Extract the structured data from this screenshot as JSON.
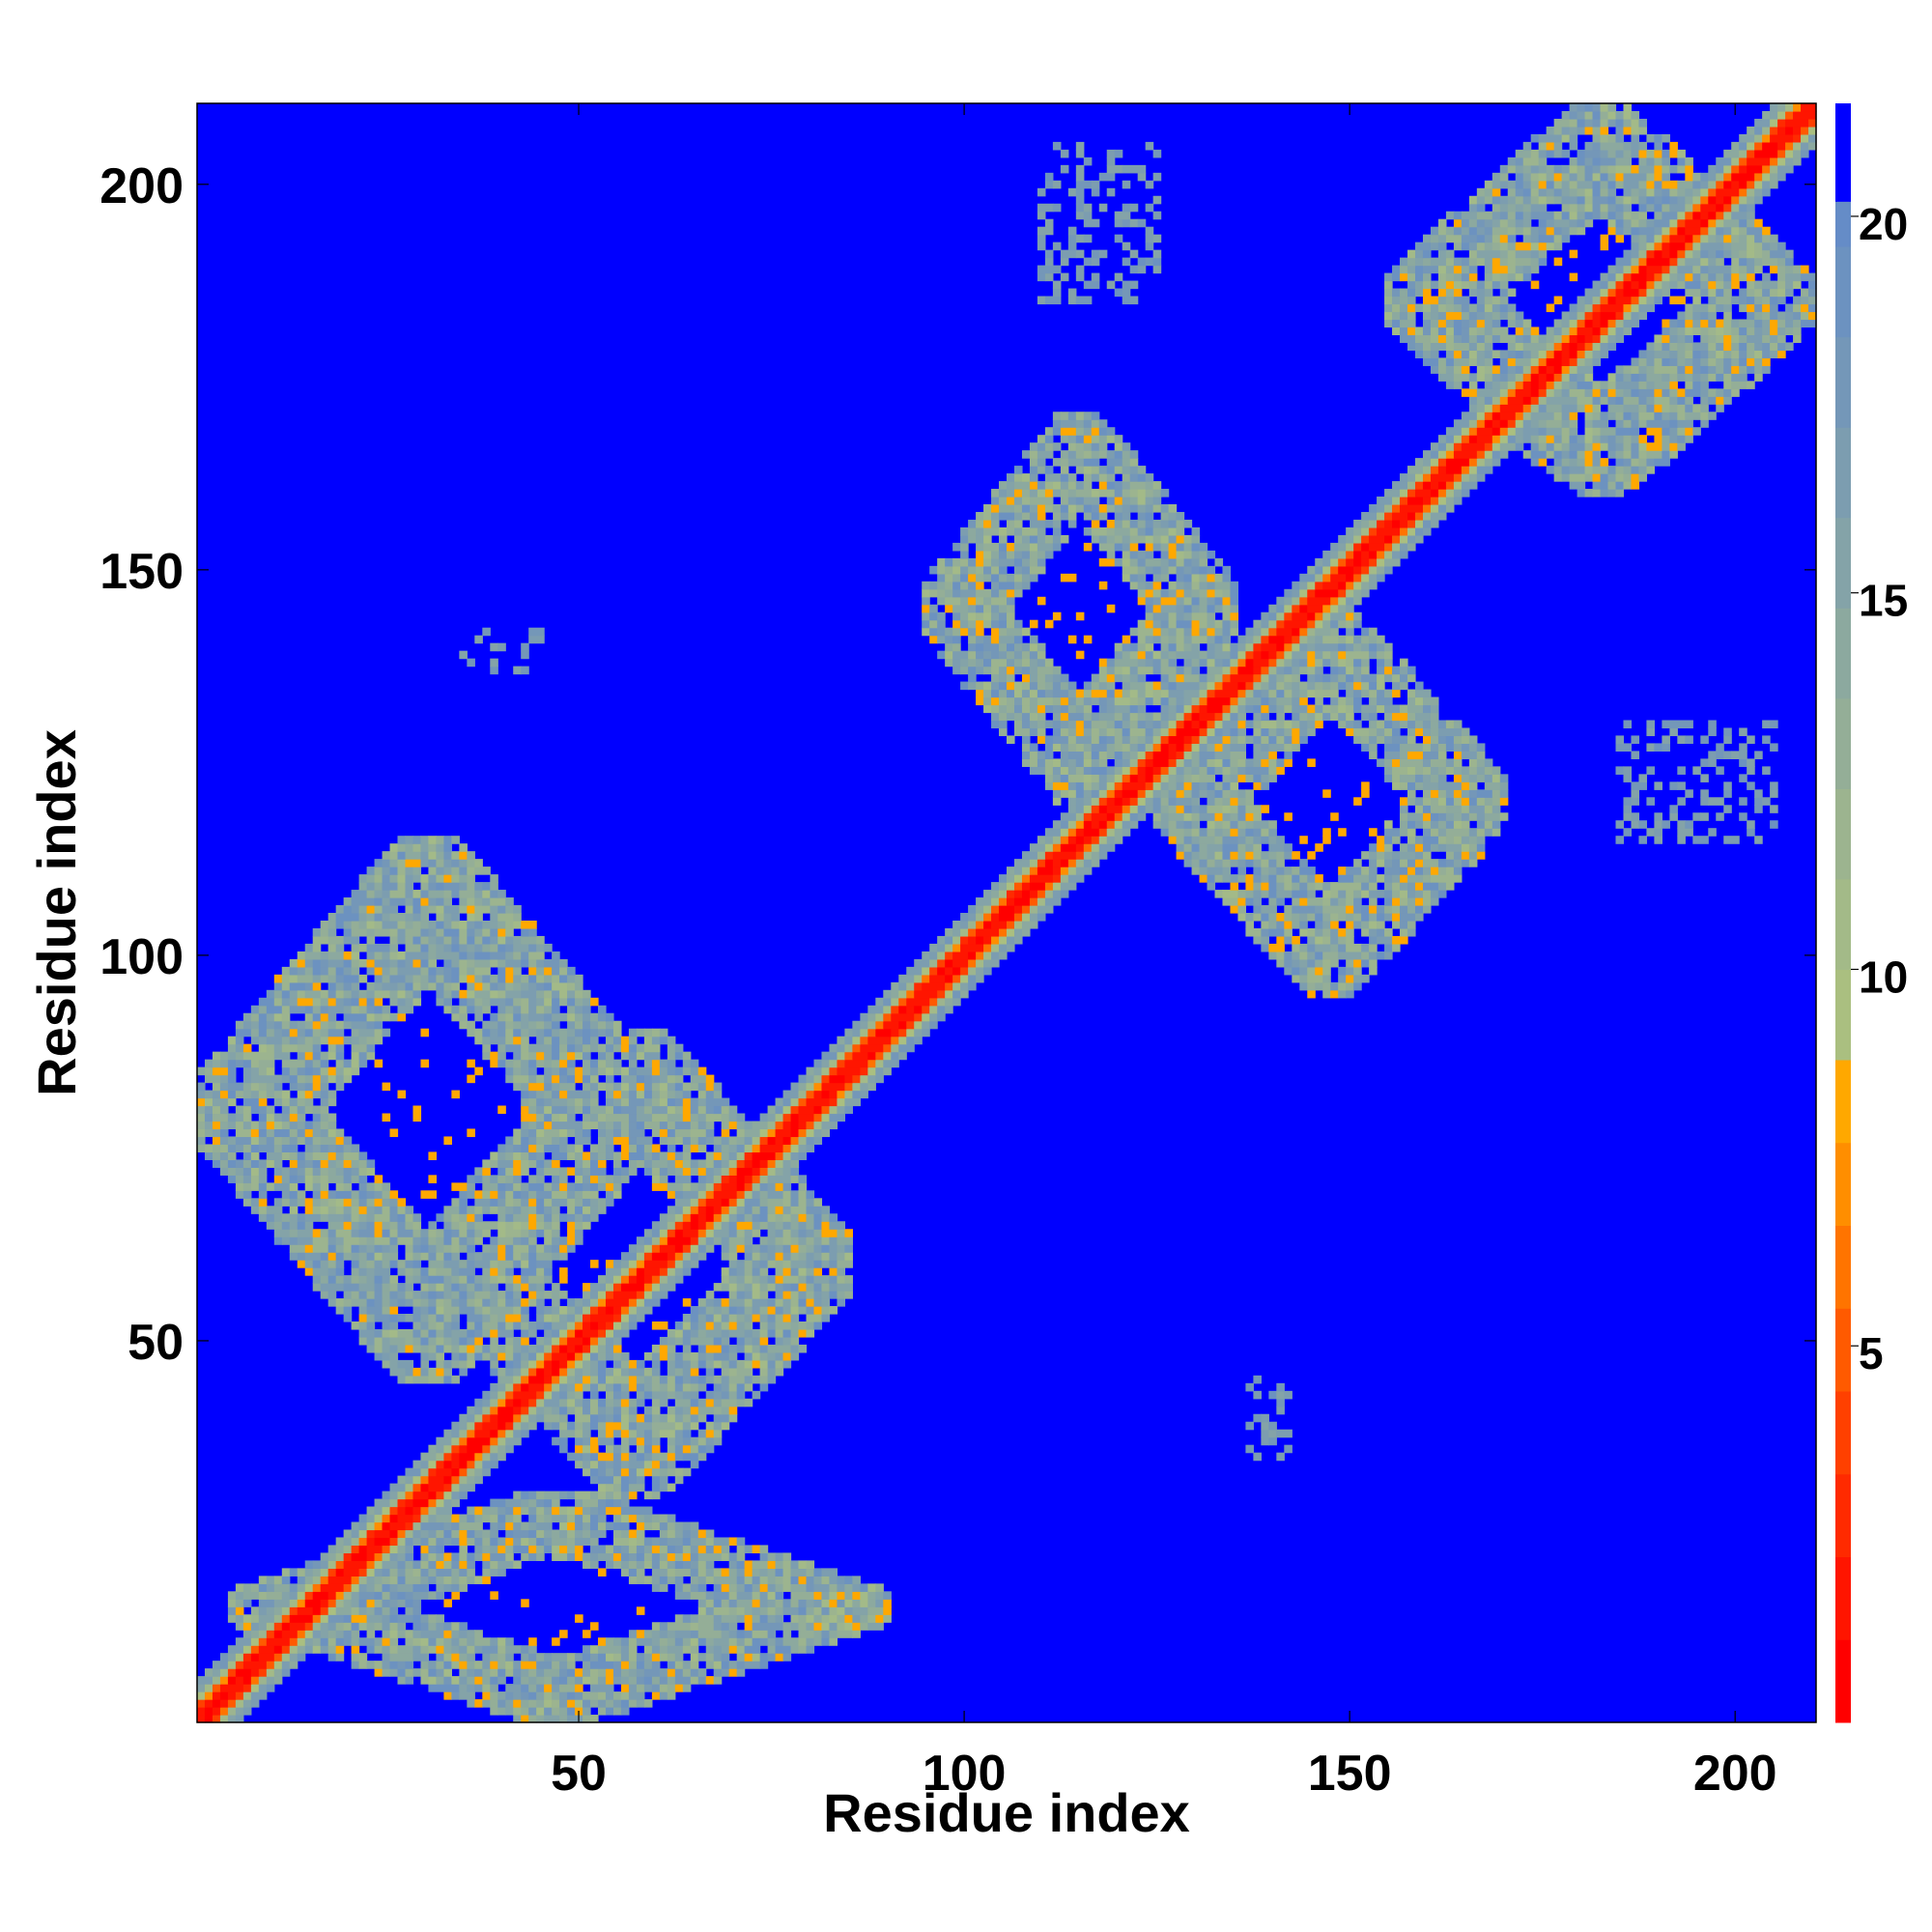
{
  "chart_data": {
    "type": "heatmap",
    "title": "",
    "xlabel": "Residue index",
    "ylabel": "Residue index",
    "xlim": [
      1,
      210
    ],
    "ylim": [
      1,
      210
    ],
    "x_ticks": [
      50,
      100,
      150,
      200
    ],
    "y_ticks": [
      50,
      100,
      150,
      200
    ],
    "colorbar": {
      "range": [
        0,
        21.5
      ],
      "ticks": [
        5,
        10,
        15,
        20
      ],
      "levels": [
        {
          "from": 0,
          "to": 1.1,
          "color": "#ff0000"
        },
        {
          "from": 1.1,
          "to": 2.2,
          "color": "#ff1500"
        },
        {
          "from": 2.2,
          "to": 3.3,
          "color": "#ff2a00"
        },
        {
          "from": 3.3,
          "to": 4.4,
          "color": "#ff4000"
        },
        {
          "from": 4.4,
          "to": 5.5,
          "color": "#ff5a00"
        },
        {
          "from": 5.5,
          "to": 6.6,
          "color": "#ff7400"
        },
        {
          "from": 6.6,
          "to": 7.7,
          "color": "#ff8e00"
        },
        {
          "from": 7.7,
          "to": 8.8,
          "color": "#ffa800"
        },
        {
          "from": 8.8,
          "to": 10,
          "color": "#aabf80"
        },
        {
          "from": 10,
          "to": 11.2,
          "color": "#a3ba88"
        },
        {
          "from": 11.2,
          "to": 12.4,
          "color": "#9cb48f"
        },
        {
          "from": 12.4,
          "to": 13.6,
          "color": "#94ae97"
        },
        {
          "from": 13.6,
          "to": 14.8,
          "color": "#8ca99f"
        },
        {
          "from": 14.8,
          "to": 16,
          "color": "#84a3a8"
        },
        {
          "from": 16,
          "to": 17.2,
          "color": "#7c9db0"
        },
        {
          "from": 17.2,
          "to": 18.4,
          "color": "#7497b8"
        },
        {
          "from": 18.4,
          "to": 19.6,
          "color": "#6c92c0"
        },
        {
          "from": 19.6,
          "to": 20.2,
          "color": "#658cc7"
        },
        {
          "from": 20.2,
          "to": 21.5,
          "color": "#0000ff"
        }
      ]
    },
    "background_color": "#0000ff",
    "description_of_features": {
      "diagonal_band": {
        "core_color": "#ff0000",
        "halo_colors": [
          "#ff7400",
          "#aabf80",
          "#7c9db0"
        ],
        "width_residues": 6
      },
      "contact_domains": [
        {
          "i": [
            5,
            90
          ],
          "j": [
            1,
            30
          ],
          "value": 14
        },
        {
          "i": [
            30,
            85
          ],
          "j": [
            30,
            90
          ],
          "value": 14
        },
        {
          "i": [
            1,
            60
          ],
          "j": [
            45,
            115
          ],
          "value": 14
        },
        {
          "i": [
            95,
            135
          ],
          "j": [
            120,
            170
          ],
          "value": 14
        },
        {
          "i": [
            125,
            170
          ],
          "j": [
            95,
            145
          ],
          "value": 14
        },
        {
          "i": [
            155,
            210
          ],
          "j": [
            160,
            210
          ],
          "value": 14
        }
      ],
      "isolated_patches": [
        {
          "i": [
            110,
            125
          ],
          "j": [
            185,
            205
          ]
        },
        {
          "i": [
            35,
            45
          ],
          "j": [
            137,
            142
          ]
        },
        {
          "i": [
            185,
            205
          ],
          "j": [
            115,
            130
          ]
        },
        {
          "i": [
            137,
            142
          ],
          "j": [
            35,
            45
          ]
        }
      ]
    }
  }
}
